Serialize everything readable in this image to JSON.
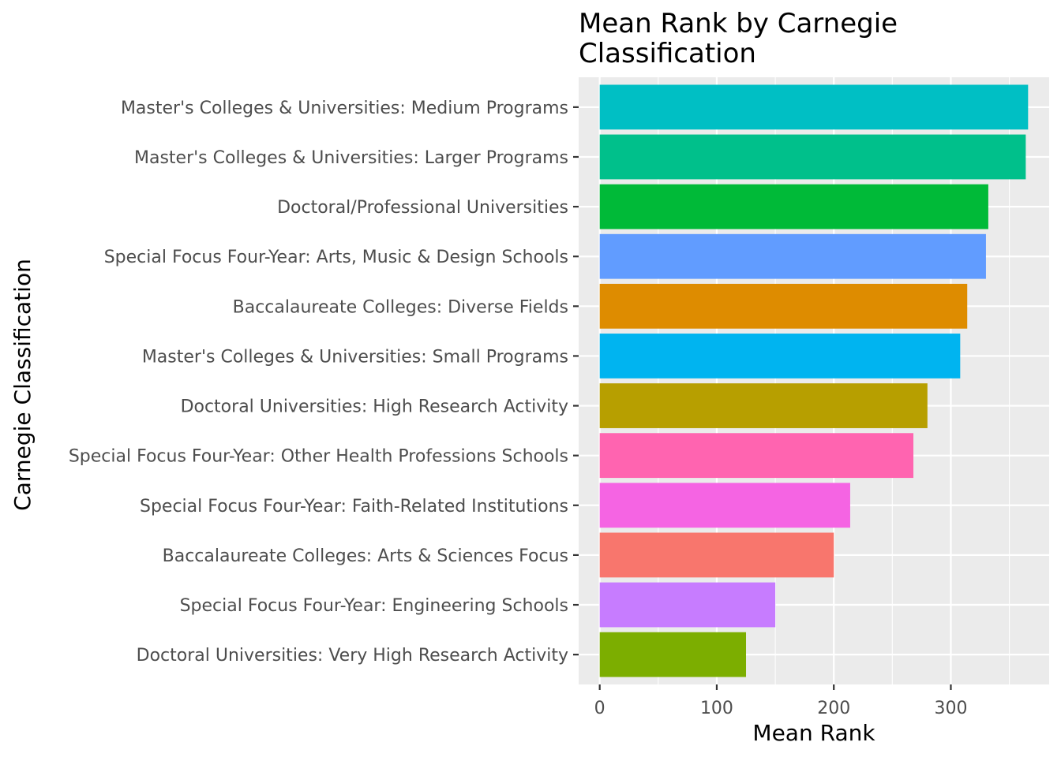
{
  "chart_data": {
    "type": "bar",
    "orientation": "horizontal",
    "title_lines": [
      "Mean Rank by Carnegie",
      "Classification"
    ],
    "xlabel": "Mean Rank",
    "ylabel": "Carnegie Classification",
    "xlim": [
      -18,
      384
    ],
    "x_ticks": [
      0,
      100,
      200,
      300
    ],
    "x_tick_labels": [
      "0",
      "100",
      "200",
      "300"
    ],
    "grid": true,
    "legend": "none",
    "panel_background": "#ebebeb",
    "categories": [
      "Master's Colleges & Universities: Medium Programs",
      "Master's Colleges & Universities: Larger Programs",
      "Doctoral/Professional Universities",
      "Special Focus Four-Year: Arts, Music & Design Schools",
      "Baccalaureate Colleges: Diverse Fields",
      "Master's Colleges & Universities: Small Programs",
      "Doctoral Universities: High Research Activity",
      "Special Focus Four-Year: Other Health Professions Schools",
      "Special Focus Four-Year: Faith-Related Institutions",
      "Baccalaureate Colleges: Arts & Sciences Focus",
      "Special Focus Four-Year: Engineering Schools",
      "Doctoral Universities: Very High Research Activity"
    ],
    "values": [
      366,
      364,
      332,
      330,
      314,
      308,
      280,
      268,
      214,
      200,
      150,
      125
    ],
    "colors": [
      "#00BFC4",
      "#00C08B",
      "#00BA38",
      "#619CFF",
      "#DE8C00",
      "#00B4F0",
      "#B79F00",
      "#FF64B0",
      "#F564E3",
      "#F8766D",
      "#C77CFF",
      "#7CAE00"
    ]
  }
}
